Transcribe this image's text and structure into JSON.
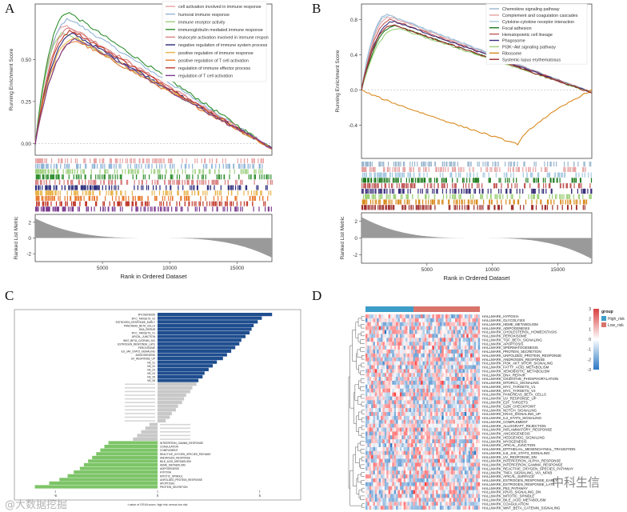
{
  "panels": {
    "a": "A",
    "b": "B",
    "c": "C",
    "d": "D"
  },
  "chart_data": [
    {
      "panel": "A",
      "type": "line",
      "ylabel_top": "Running Enrichment Score",
      "ylabel_bottom": "Ranked List Metric",
      "xlabel": "Rank in Ordered Dataset",
      "x_ticks": [
        5000,
        10000,
        15000
      ],
      "y_ticks_top": [
        "0.00",
        "0.25",
        "0.50"
      ],
      "y_ticks_bottom": [
        "2",
        "0",
        "-2"
      ],
      "xlim": [
        0,
        17600
      ],
      "ylim_top": [
        -0.07,
        0.83
      ],
      "legend_position": "top-right",
      "series": [
        {
          "name": "cell activation involved in immune response",
          "color": "#e8a3a3",
          "peak_x": 2300,
          "peak": 0.7
        },
        {
          "name": "humoral immune response",
          "color": "#8fb3d6",
          "peak_x": 2600,
          "peak": 0.74
        },
        {
          "name": "immune receptor activity",
          "color": "#9ecf7f",
          "peak_x": 2200,
          "peak": 0.66
        },
        {
          "name": "immunoglobulin mediated immune response",
          "color": "#2f8f2f",
          "peak_x": 2500,
          "peak": 0.78
        },
        {
          "name": "leukocyte activation involved in immune respon",
          "color": "#d98080",
          "peak_x": 2700,
          "peak": 0.69
        },
        {
          "name": "negative regulation of immune system process",
          "color": "#2a2a7a",
          "peak_x": 2900,
          "peak": 0.65
        },
        {
          "name": "positive regulation of immune response",
          "color": "#e8b34a",
          "peak_x": 3000,
          "peak": 0.63
        },
        {
          "name": "positive regulation of T cell activation",
          "color": "#e87a30",
          "peak_x": 3100,
          "peak": 0.61
        },
        {
          "name": "regulation of immune effector process",
          "color": "#c0392b",
          "peak_x": 2800,
          "peak": 0.67
        },
        {
          "name": "regulation of T cell activation",
          "color": "#7a3a8f",
          "peak_x": 3200,
          "peak": 0.62
        }
      ]
    },
    {
      "panel": "B",
      "type": "line",
      "ylabel_top": "Running Enrichment Score",
      "ylabel_bottom": "Ranked List Metric",
      "xlabel": "Rank in Ordered Dataset",
      "x_ticks": [
        5000,
        10000,
        15000
      ],
      "y_ticks_top": [
        "0.8",
        "0.4",
        "0.0",
        "-0.4"
      ],
      "y_ticks_bottom": [
        "2",
        "0",
        "-2"
      ],
      "xlim": [
        0,
        17600
      ],
      "ylim_top": [
        -0.78,
        0.98
      ],
      "legend_position": "top-right",
      "series": [
        {
          "name": "Chemokine signaling pathway",
          "color": "#9bb7cf",
          "peak_x": 2000,
          "peak": 0.86
        },
        {
          "name": "Complement and coagulation cascades",
          "color": "#e6a1a1",
          "peak_x": 2200,
          "peak": 0.83
        },
        {
          "name": "Cytokine-cytokine receptor interaction",
          "color": "#a6c8e0",
          "peak_x": 2100,
          "peak": 0.85
        },
        {
          "name": "Focal adhesion",
          "color": "#1f7a1f",
          "peak_x": 2600,
          "peak": 0.73
        },
        {
          "name": "Hematopoietic cell lineage",
          "color": "#c25757",
          "peak_x": 2300,
          "peak": 0.8
        },
        {
          "name": "Phagosome",
          "color": "#3a2f7a",
          "peak_x": 2500,
          "peak": 0.78
        },
        {
          "name": "PI3K−Akt signaling pathway",
          "color": "#9ed07a",
          "peak_x": 2800,
          "peak": 0.7
        },
        {
          "name": "Ribosome",
          "color": "#d98a1f",
          "trough_x": 12000,
          "trough": -0.62
        },
        {
          "name": "Systemic lupus erythematosus",
          "color": "#9d2a2a",
          "peak_x": 2400,
          "peak": 0.74
        }
      ]
    },
    {
      "panel": "C",
      "type": "bar",
      "orientation": "horizontal",
      "xlabel": "t value of GSVA score, high risk versus low risk",
      "x_ticks": [
        "-5",
        "0",
        "5"
      ],
      "xlim": [
        -7,
        7
      ],
      "legend": [],
      "colors": {
        "up": "#1f4e8f",
        "nonsig": "#c8c8c8",
        "down": "#7cc467"
      },
      "categories": [
        "MYOGENESIS",
        "MYC_TARGETS_V2",
        "ESTROGEN_RESPONSE_EARLY",
        "PANCREAS_BETA_CELLS",
        "DNA_REPAIR",
        "MYC_TARGETS_V1",
        "APICAL_JUNCTION",
        "WNT_BETA_CATENIN_SIG",
        "ESTROGEN_RESPONSE_LATE",
        "PEROXISOME",
        "IL6_JAK_STAT3_SIGNALING",
        "ANGIOGENESIS",
        "UV_RESPONSE_UP",
        "NS_01",
        "NS_02",
        "NS_03",
        "NS_04",
        "NS_05",
        "NS_06",
        "NS_07",
        "NS_08",
        "NS_09",
        "NS_10",
        "NS_11",
        "NS_12",
        "NS_13",
        "NS_14",
        "NS_15",
        "NS_16",
        "NS_17",
        "NS_18",
        "NS_19",
        "NS_20",
        "NS_21",
        "NS_22",
        "INTERFERON_GAMMA_RESPONSE",
        "COAGULATION",
        "COMPLEMENT",
        "REACTIVE_OXYGEN_SPECIES_PATHWAY",
        "ANDROGEN_RESPONSE",
        "BILE_ACID_METABOLISM",
        "HEME_METABOLISM",
        "ADIPOGENESIS",
        "HYPOXIA",
        "MITOTIC_SPINDLE",
        "UNFOLDED_PROTEIN_RESPONSE",
        "APOPTOSIS",
        "PROTEIN_SECRETION"
      ],
      "values": [
        5.6,
        5.1,
        4.9,
        4.7,
        4.6,
        4.5,
        4.3,
        4.1,
        4.0,
        3.8,
        3.6,
        3.4,
        3.2,
        2.9,
        2.7,
        2.5,
        2.3,
        2.2,
        2.0,
        1.9,
        1.7,
        1.6,
        1.4,
        1.3,
        1.2,
        1.0,
        0.9,
        0.7,
        0.6,
        0.4,
        -0.4,
        -0.6,
        -0.8,
        -1.0,
        -1.2,
        -2.4,
        -2.6,
        -2.8,
        -3.0,
        -3.2,
        -3.4,
        -3.6,
        -3.8,
        -4.1,
        -4.4,
        -4.8,
        -5.3,
        -6.0
      ],
      "significant_threshold": 2.0,
      "nonsig_labels": "omitted — faint label text is not legible in the source"
    },
    {
      "panel": "D",
      "type": "heatmap",
      "legend_title": "group",
      "groups": [
        {
          "name": "High_risk",
          "color": "#3d9dc9"
        },
        {
          "name": "Low_risk",
          "color": "#d9746b"
        }
      ],
      "group_split": 0.42,
      "colorbar_ticks": [
        "3",
        "2",
        "1",
        "0",
        "-1",
        "-2",
        "-3"
      ],
      "colorbar_range": [
        -3,
        3
      ],
      "colors": {
        "high": "#d93f3f",
        "mid": "#ffffff",
        "low": "#2b78c4"
      },
      "rows": [
        "HALLMARK_HYPOXIA",
        "HALLMARK_GLYCOLYSIS",
        "HALLMARK_HEME_METABOLISM",
        "HALLMARK_ADIPOGENESIS",
        "HALLMARK_CHOLESTEROL_HOMEOSTASIS",
        "HALLMARK_PEROXISOME",
        "HALLMARK_TGF_BETA_SIGNALING",
        "HALLMARK_APOPTOSIS",
        "HALLMARK_SPERMATOGENESIS",
        "HALLMARK_PROTEIN_SECRETION",
        "HALLMARK_UNFOLDED_PROTEIN_RESPONSE",
        "HALLMARK_ANDROGEN_RESPONSE",
        "HALLMARK_PI3K_AKT_MTOR_SIGNALING",
        "HALLMARK_FATTY_ACID_METABOLISM",
        "HALLMARK_XENOBIOTIC_METABOLISM",
        "HALLMARK_DNA_REPAIR",
        "HALLMARK_OXIDATIVE_PHOSPHORYLATION",
        "HALLMARK_MTORC1_SIGNALING",
        "HALLMARK_MYC_TARGETS_V1",
        "HALLMARK_MYC_TARGETS_V2",
        "HALLMARK_PANCREAS_BETA_CELLS",
        "HALLMARK_UV_RESPONSE_UP",
        "HALLMARK_E2F_TARGETS",
        "HALLMARK_G2M_CHECKPOINT",
        "HALLMARK_NOTCH_SIGNALING",
        "HALLMARK_KRAS_SIGNALING_UP",
        "HALLMARK_IL2_STAT5_SIGNALING",
        "HALLMARK_COMPLEMENT",
        "HALLMARK_ALLOGRAFT_REJECTION",
        "HALLMARK_INFLAMMATORY_RESPONSE",
        "HALLMARK_ANGIOGENESIS",
        "HALLMARK_HEDGEHOG_SIGNALING",
        "HALLMARK_MYOGENESIS",
        "HALLMARK_APICAL_JUNCTION",
        "HALLMARK_EPITHELIAL_MESENCHYMAL_TRANSITION",
        "HALLMARK_IL6_JAK_STAT3_SIGNALING",
        "HALLMARK_UV_RESPONSE_DN",
        "HALLMARK_INTERFERON_ALPHA_RESPONSE",
        "HALLMARK_INTERFERON_GAMMA_RESPONSE",
        "HALLMARK_REACTIVE_OXYGEN_SPECIES_PATHWAY",
        "HALLMARK_TNFA_SIGNALING_VIA_NFKB",
        "HALLMARK_APICAL_SURFACE",
        "HALLMARK_ESTROGEN_RESPONSE_EARLY",
        "HALLMARK_ESTROGEN_RESPONSE_LATE",
        "HALLMARK_P53_PATHWAY",
        "HALLMARK_KRAS_SIGNALING_DN",
        "HALLMARK_MITOTIC_SPINDLE",
        "HALLMARK_BILE_ACID_METABOLISM",
        "HALLMARK_COAGULATION",
        "HALLMARK_WNT_BETA_CATENIN_SIGNALING"
      ],
      "n_columns": 60
    }
  ],
  "watermarks": {
    "left": "@大数据挖掘",
    "right": "中科生信"
  }
}
